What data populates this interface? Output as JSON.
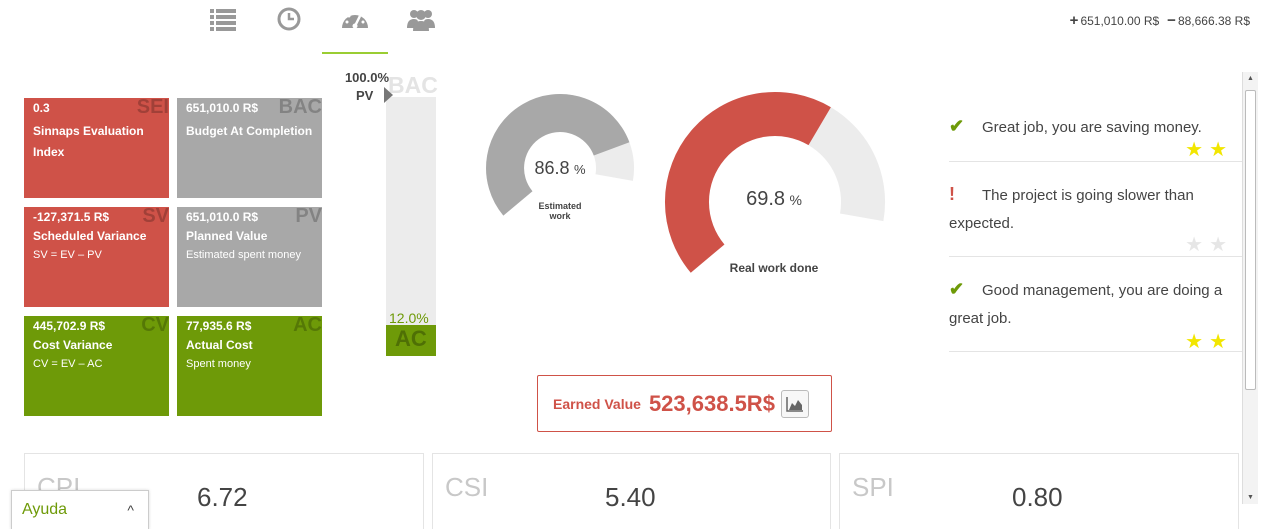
{
  "tabs": [
    {
      "icon": "list-icon"
    },
    {
      "icon": "clock-icon"
    },
    {
      "icon": "dashboard-icon",
      "active": true
    },
    {
      "icon": "team-icon"
    }
  ],
  "totals": {
    "plus_sign": "+",
    "plus_value": "651,010.00 R$",
    "minus_sign": "−",
    "minus_value": "88,666.38 R$"
  },
  "kpis": {
    "sei": {
      "abbr": "SEI",
      "value": "0.3",
      "name": "Sinnaps Evaluation Index",
      "sub": ""
    },
    "bac": {
      "abbr": "BAC",
      "value": "651,010.0 R$",
      "name": "Budget At Completion",
      "sub": ""
    },
    "sv": {
      "abbr": "SV",
      "value": "-127,371.5 R$",
      "name": "Scheduled Variance",
      "sub": "SV = EV – PV"
    },
    "pv": {
      "abbr": "PV",
      "value": "651,010.0 R$",
      "name": "Planned Value",
      "sub": "Estimated spent money"
    },
    "cv": {
      "abbr": "CV",
      "value": "445,702.9 R$",
      "name": "Cost Variance",
      "sub": "CV = EV – AC"
    },
    "ac": {
      "abbr": "AC",
      "value": "77,935.6 R$",
      "name": "Actual Cost",
      "sub": "Spent money"
    }
  },
  "vbar": {
    "bac_label": "BAC",
    "pv_pct": "100.0%",
    "pv_label": "PV",
    "ac_pct": "12.0%",
    "ac_label": "AC",
    "ac_fraction": 0.12
  },
  "gauges": {
    "estimated": {
      "value": "86.8",
      "unit": "%",
      "label": "Estimated work",
      "fraction": 0.868
    },
    "real": {
      "value": "69.8",
      "unit": "%",
      "label": "Real work done",
      "fraction": 0.698
    }
  },
  "earned_value": {
    "label": "Earned Value",
    "value": "523,638.5R$",
    "icon": "area-chart-icon"
  },
  "messages": [
    {
      "icon": "check-icon",
      "glyph": "✔",
      "text": "Great job, you are saving money.",
      "stars": 2
    },
    {
      "icon": "exclamation-icon",
      "glyph": "!",
      "text": "The project is going slower than expected.",
      "stars": 0
    },
    {
      "icon": "check-icon",
      "glyph": "✔",
      "text": "Good management, you are doing a great job.",
      "stars": 2
    }
  ],
  "cards": [
    {
      "label": "CPI",
      "value": "6.72"
    },
    {
      "label": "CSI",
      "value": "5.40"
    },
    {
      "label": "SPI",
      "value": "0.80"
    }
  ],
  "help": {
    "label": "Ayuda",
    "chevron": "^"
  },
  "colors": {
    "red": "#cf5248",
    "gray": "#a8a8a8",
    "green": "#6e9a08",
    "star": "#f2e600",
    "star_off": "#e6e6e6"
  }
}
